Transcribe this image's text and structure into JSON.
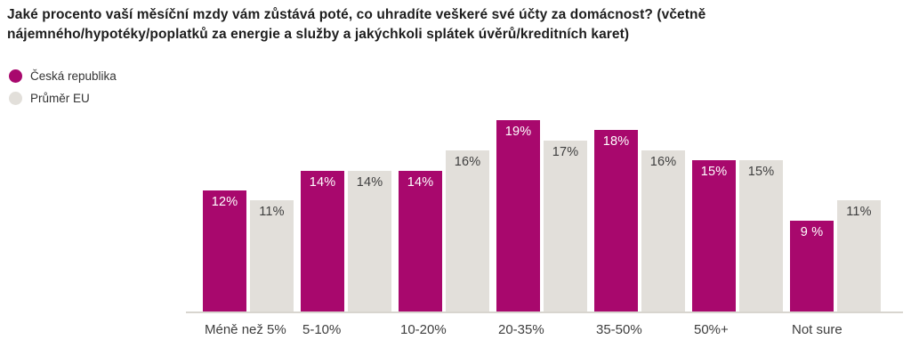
{
  "header": {
    "title_lines": [
      "Jaké procento vaší měsíční mzdy vám zůstává poté, co uhradíte veškeré své účty za domácnost? (včetně",
      "nájemného/hypotéky/poplatků za energie a služby a jakýchkoli splátek úvěrů/kreditních karet)"
    ]
  },
  "legend": {
    "items": [
      {
        "label": "Česká republika",
        "color": "#A8086D"
      },
      {
        "label": "Průměr EU",
        "color": "#E2DFDA"
      }
    ]
  },
  "colors": {
    "baseline": "#D8D5CF",
    "title_text": "#1D1D1D",
    "axis_text": "#3E3E3E"
  },
  "chart_data": {
    "type": "bar",
    "title": "Jaké procento vaší měsíční mzdy vám zůstává poté, co uhradíte veškeré své účty za domácnost? (včetně nájemného/hypotéky/poplatků za energie a služby a jakýchkoli splátek úvěrů/kreditních karet)",
    "categories": [
      "Méně než 5%",
      "5-10%",
      "10-20%",
      "20-35%",
      "35-50%",
      "50%+",
      "Not sure"
    ],
    "series": [
      {
        "name": "Česká republika",
        "color": "#A8086D",
        "values": [
          12,
          14,
          14,
          19,
          18,
          15,
          9
        ],
        "value_labels": [
          "12%",
          "14%",
          "14%",
          "19%",
          "18%",
          "15%",
          "9 %"
        ],
        "value_label_color": "#FFFFFF"
      },
      {
        "name": "Průměr EU",
        "color": "#E2DFDA",
        "values": [
          11,
          14,
          16,
          17,
          16,
          15,
          11
        ],
        "value_labels": [
          "11%",
          "14%",
          "16%",
          "17%",
          "16%",
          "15%",
          "11%"
        ],
        "value_label_color": "#3E3E3E"
      }
    ],
    "xlabel": "",
    "ylabel": "",
    "ylim": [
      0,
      20
    ],
    "grid": false,
    "legend_position": "top-left",
    "value_label_position": "inside-top"
  }
}
